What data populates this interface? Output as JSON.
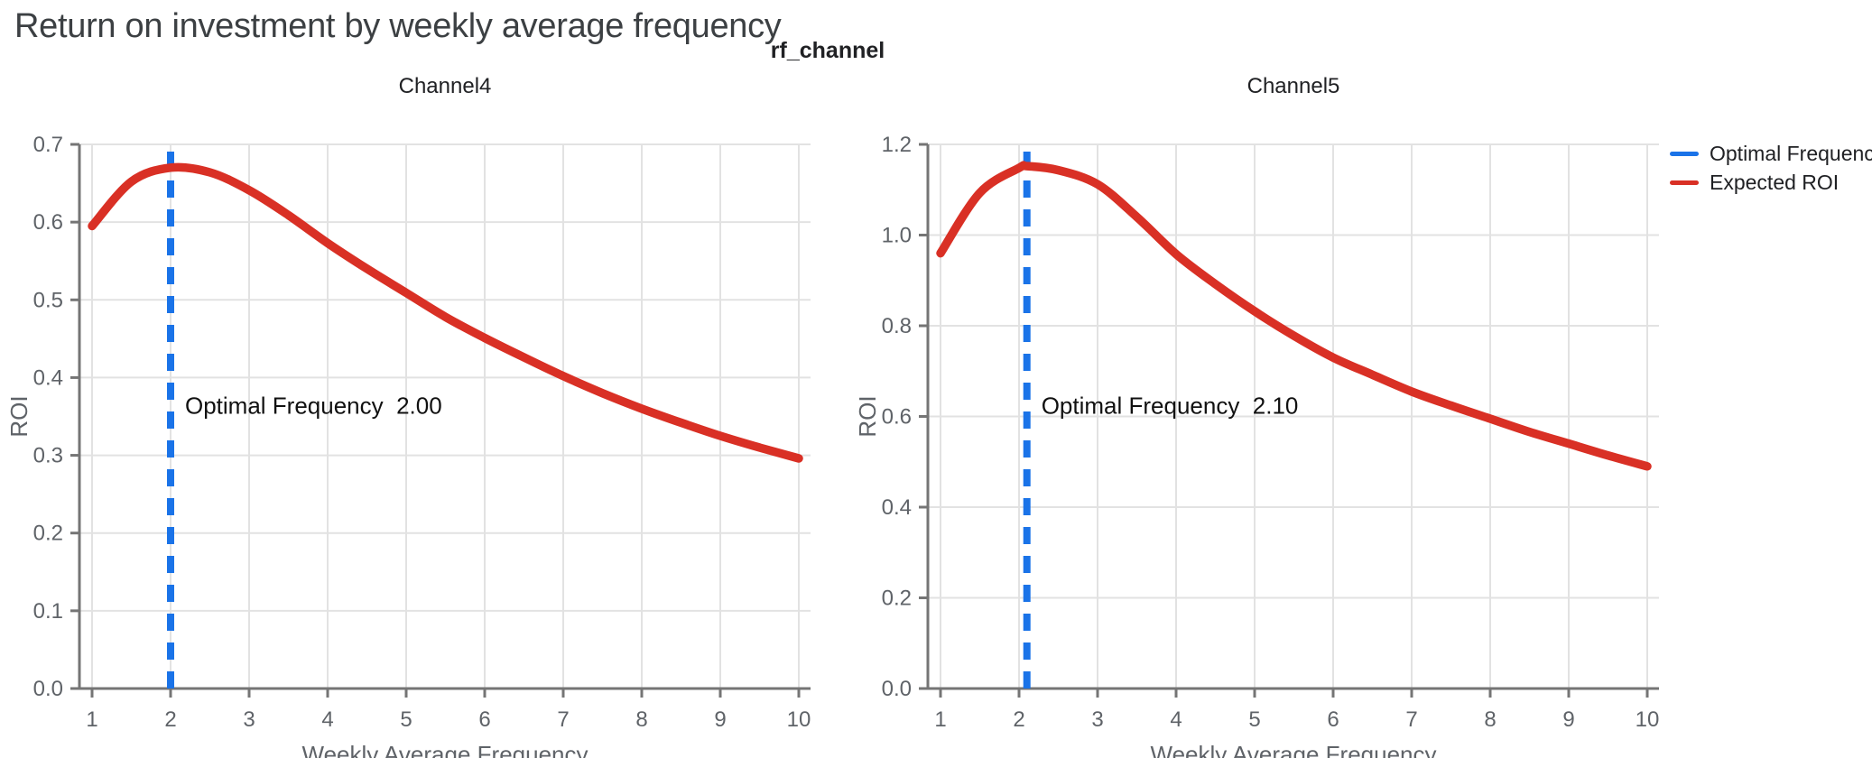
{
  "page": {
    "title": "Return on investment by weekly average frequency",
    "background": "#ffffff"
  },
  "figure": {
    "super_title": "rf_channel"
  },
  "colors": {
    "title_text": "#3c4043",
    "chart_text": "#202124",
    "muted_text": "#5f6368",
    "grid": "#e2e2e2",
    "axis": "#757575",
    "annotation_text": "#111111",
    "optimal_frequency_blue": "#1a73e8",
    "expected_roi_red": "#d93025"
  },
  "legend": {
    "position": "top-right-outside",
    "items": [
      {
        "label": "Optimal Frequency",
        "color": "#1a73e8",
        "marker": "line"
      },
      {
        "label": "Expected ROI",
        "color": "#d93025",
        "marker": "line"
      }
    ]
  },
  "chart_data": [
    {
      "type": "line",
      "title": "Channel4",
      "xlabel": "Weekly Average Frequency",
      "ylabel": "ROI",
      "xlim": [
        0.85,
        10.15
      ],
      "ylim": [
        0.0,
        0.7
      ],
      "xticks": [
        1,
        2,
        3,
        4,
        5,
        6,
        7,
        8,
        9,
        10
      ],
      "yticks": [
        0.0,
        0.1,
        0.2,
        0.3,
        0.4,
        0.5,
        0.6,
        0.7
      ],
      "grid": true,
      "series": [
        {
          "name": "Expected ROI",
          "color": "#d93025",
          "points": [
            [
              1.0,
              0.595
            ],
            [
              1.5,
              0.652
            ],
            [
              2.0,
              0.67
            ],
            [
              2.5,
              0.664
            ],
            [
              3.0,
              0.641
            ],
            [
              3.5,
              0.609
            ],
            [
              4.0,
              0.573
            ],
            [
              4.5,
              0.54
            ],
            [
              5.0,
              0.509
            ],
            [
              5.5,
              0.478
            ],
            [
              6.0,
              0.451
            ],
            [
              6.5,
              0.426
            ],
            [
              7.0,
              0.402
            ],
            [
              7.5,
              0.38
            ],
            [
              8.0,
              0.36
            ],
            [
              8.5,
              0.342
            ],
            [
              9.0,
              0.325
            ],
            [
              9.5,
              0.31
            ],
            [
              10.0,
              0.296
            ]
          ]
        }
      ],
      "vline": {
        "name": "Optimal Frequency",
        "x": 2.0,
        "color": "#1a73e8",
        "style": "dashed"
      },
      "annotation": {
        "label": "Optimal Frequency",
        "value": "2.00"
      }
    },
    {
      "type": "line",
      "title": "Channel5",
      "xlabel": "Weekly Average Frequency",
      "ylabel": "ROI",
      "xlim": [
        0.85,
        10.15
      ],
      "ylim": [
        0.0,
        1.2
      ],
      "xticks": [
        1,
        2,
        3,
        4,
        5,
        6,
        7,
        8,
        9,
        10
      ],
      "yticks": [
        0.0,
        0.2,
        0.4,
        0.6,
        0.8,
        1.0,
        1.2
      ],
      "grid": true,
      "series": [
        {
          "name": "Expected ROI",
          "color": "#d93025",
          "points": [
            [
              1.0,
              0.96
            ],
            [
              1.5,
              1.093
            ],
            [
              2.0,
              1.148
            ],
            [
              2.1,
              1.152
            ],
            [
              2.5,
              1.143
            ],
            [
              3.0,
              1.112
            ],
            [
              3.5,
              1.04
            ],
            [
              4.0,
              0.958
            ],
            [
              4.5,
              0.892
            ],
            [
              5.0,
              0.832
            ],
            [
              5.5,
              0.778
            ],
            [
              6.0,
              0.73
            ],
            [
              6.5,
              0.692
            ],
            [
              7.0,
              0.655
            ],
            [
              7.5,
              0.624
            ],
            [
              8.0,
              0.595
            ],
            [
              8.5,
              0.566
            ],
            [
              9.0,
              0.54
            ],
            [
              9.5,
              0.514
            ],
            [
              10.0,
              0.49
            ]
          ]
        }
      ],
      "vline": {
        "name": "Optimal Frequency",
        "x": 2.1,
        "color": "#1a73e8",
        "style": "dashed"
      },
      "annotation": {
        "label": "Optimal Frequency",
        "value": "2.10"
      }
    }
  ]
}
